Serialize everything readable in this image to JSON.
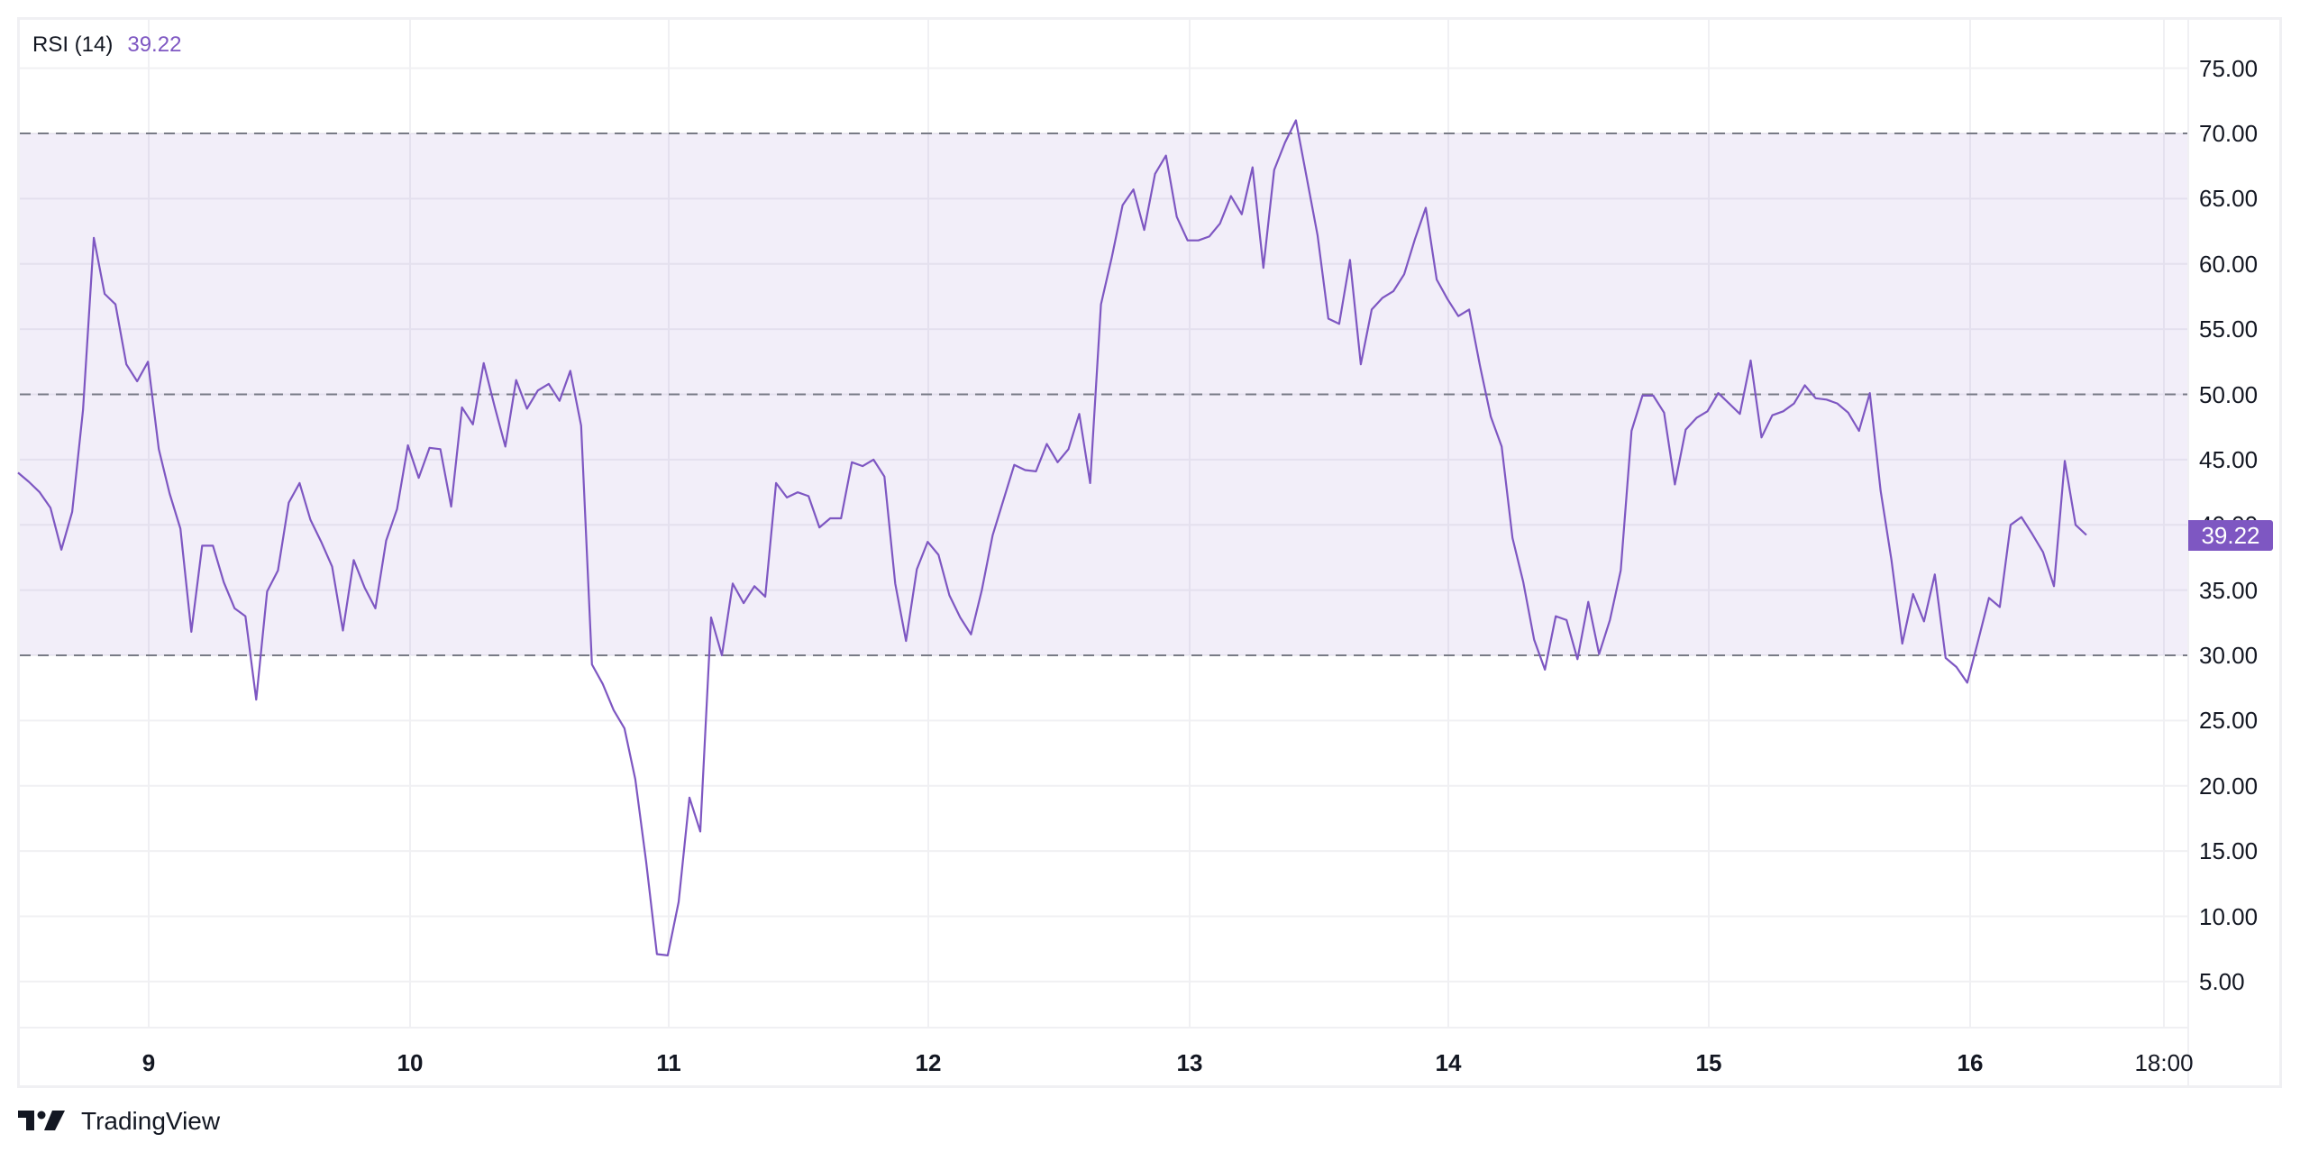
{
  "legend": {
    "name": "RSI (14)",
    "value": "39.22"
  },
  "price_badge": "39.22",
  "brand": {
    "name": "TradingView",
    "icon": "tradingview-logo-icon"
  },
  "colors": {
    "line": "#7E57C2",
    "band_fill": "#F0ECF8",
    "band_lines": "#787B86",
    "grid": "#F0F0F3",
    "badge": "#7E57C2"
  },
  "y_axis": {
    "ticks": [
      "75.00",
      "70.00",
      "65.00",
      "60.00",
      "55.00",
      "50.00",
      "45.00",
      "40.00",
      "35.00",
      "30.00",
      "25.00",
      "20.00",
      "15.00",
      "10.00",
      "5.00"
    ]
  },
  "x_axis": {
    "ticks": [
      "9",
      "10",
      "11",
      "12",
      "13",
      "14",
      "15",
      "16",
      "18:00"
    ]
  },
  "chart_data": {
    "type": "line",
    "title": "RSI (14)",
    "xlabel": "",
    "ylabel": "",
    "ylim": [
      0,
      78
    ],
    "x_tick_labels": [
      "9",
      "10",
      "11",
      "12",
      "13",
      "14",
      "15",
      "16",
      "18:00"
    ],
    "y_tick_labels": [
      "5.00",
      "10.00",
      "15.00",
      "20.00",
      "25.00",
      "30.00",
      "35.00",
      "40.00",
      "45.00",
      "50.00",
      "55.00",
      "60.00",
      "65.00",
      "70.00",
      "75.00"
    ],
    "grid": true,
    "bands": {
      "upper": 70,
      "middle": 50,
      "lower": 30
    },
    "last_value": 39.22,
    "series": [
      {
        "name": "RSI (14)",
        "values": [
          44.0,
          43.3,
          42.5,
          41.3,
          38.1,
          41.0,
          48.8,
          62.0,
          57.7,
          56.9,
          52.3,
          51.0,
          52.5,
          45.8,
          42.4,
          39.7,
          31.8,
          38.4,
          38.4,
          35.6,
          33.6,
          33.0,
          26.6,
          34.9,
          36.5,
          41.7,
          43.2,
          40.4,
          38.7,
          36.8,
          31.9,
          37.3,
          35.2,
          33.6,
          38.8,
          41.2,
          46.1,
          43.6,
          45.9,
          45.8,
          41.4,
          49.0,
          47.7,
          52.4,
          49.1,
          46.0,
          51.1,
          48.9,
          50.3,
          50.8,
          49.5,
          51.8,
          47.6,
          29.3,
          27.8,
          25.8,
          24.4,
          20.5,
          14.2,
          7.1,
          7.0,
          11.1,
          19.1,
          16.5,
          32.9,
          30.0,
          35.5,
          34.0,
          35.3,
          34.5,
          43.2,
          42.1,
          42.5,
          42.2,
          39.8,
          40.5,
          40.5,
          44.8,
          44.5,
          45.0,
          43.7,
          35.5,
          31.1,
          36.6,
          38.7,
          37.7,
          34.6,
          32.9,
          31.6,
          35.0,
          39.2,
          41.9,
          44.6,
          44.2,
          44.1,
          46.2,
          44.8,
          45.8,
          48.5,
          43.2,
          56.9,
          60.5,
          64.5,
          65.7,
          62.6,
          66.9,
          68.3,
          63.6,
          61.8,
          61.8,
          62.1,
          63.1,
          65.2,
          63.8,
          67.4,
          59.7,
          67.2,
          69.3,
          71.0,
          66.6,
          62.2,
          55.8,
          55.4,
          60.3,
          52.3,
          56.5,
          57.4,
          57.9,
          59.2,
          61.9,
          64.3,
          58.8,
          57.3,
          56.0,
          56.5,
          52.2,
          48.3,
          46.0,
          39.0,
          35.6,
          31.2,
          28.9,
          33.0,
          32.7,
          29.7,
          34.1,
          30.1,
          32.7,
          36.5,
          47.2,
          49.9,
          49.9,
          48.6,
          43.1,
          47.3,
          48.2,
          48.7,
          50.1,
          49.3,
          48.5,
          52.6,
          46.7,
          48.4,
          48.7,
          49.3,
          50.7,
          49.7,
          49.6,
          49.3,
          48.6,
          47.2,
          50.1,
          42.6,
          37.3,
          30.9,
          34.7,
          32.6,
          36.2,
          29.8,
          29.1,
          27.9,
          31.1,
          34.4,
          33.7,
          40.0,
          40.6,
          39.3,
          37.9,
          35.3,
          44.9,
          40.0,
          39.22
        ]
      }
    ]
  }
}
